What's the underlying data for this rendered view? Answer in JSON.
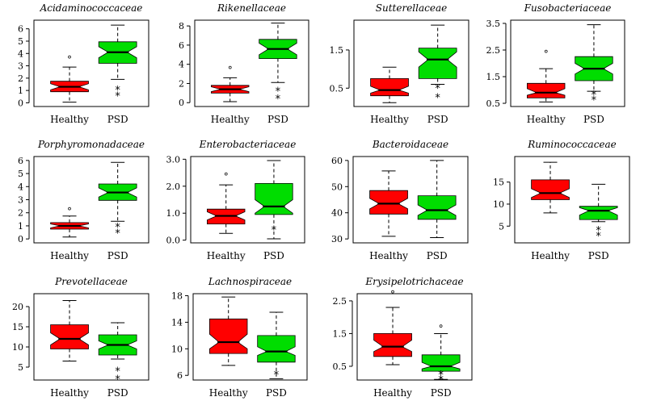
{
  "figure": {
    "colors": {
      "healthy": "#ff0000",
      "psd": "#00dd00",
      "axis": "#000000"
    },
    "whisker_style": "dashed",
    "outlier_marks": [
      "°",
      "*"
    ],
    "groups": [
      "Healthy",
      "PSD"
    ]
  },
  "chart_data": [
    {
      "type": "boxplot",
      "notched": true,
      "title": "Acidaminococcaceae",
      "categories": [
        "Healthy",
        "PSD"
      ],
      "ylim": [
        -0.3,
        6.7
      ],
      "yticks": [
        0,
        1,
        2,
        3,
        4,
        5,
        6
      ],
      "ytick_labels": [
        "0",
        "1",
        "2",
        "3",
        "4",
        "5",
        "6"
      ],
      "boxes": [
        {
          "name": "Healthy",
          "color": "#ff0000",
          "whislo": 0.05,
          "q1": 0.9,
          "med": 1.3,
          "q3": 1.75,
          "whishi": 2.9,
          "notch": [
            1.05,
            1.55
          ],
          "fliers": [
            {
              "y": 3.5,
              "mark": "°"
            }
          ]
        },
        {
          "name": "PSD",
          "color": "#00dd00",
          "whislo": 1.9,
          "q1": 3.2,
          "med": 4.1,
          "q3": 4.95,
          "whishi": 6.3,
          "notch": [
            3.65,
            4.55
          ],
          "fliers": [
            {
              "y": 0.7,
              "mark": "*"
            },
            {
              "y": 1.2,
              "mark": "*"
            }
          ]
        }
      ]
    },
    {
      "type": "boxplot",
      "notched": true,
      "title": "Rikenellaceae",
      "categories": [
        "Healthy",
        "PSD"
      ],
      "ylim": [
        -0.4,
        8.6
      ],
      "yticks": [
        0,
        2,
        4,
        6,
        8
      ],
      "ytick_labels": [
        "0",
        "2",
        "4",
        "6",
        "8"
      ],
      "boxes": [
        {
          "name": "Healthy",
          "color": "#ff0000",
          "whislo": 0.1,
          "q1": 1.0,
          "med": 1.4,
          "q3": 1.8,
          "whishi": 2.6,
          "notch": [
            1.15,
            1.65
          ],
          "fliers": [
            {
              "y": 3.4,
              "mark": "°"
            }
          ]
        },
        {
          "name": "PSD",
          "color": "#00dd00",
          "whislo": 2.1,
          "q1": 4.6,
          "med": 5.6,
          "q3": 6.6,
          "whishi": 8.3,
          "notch": [
            5.0,
            6.2
          ],
          "fliers": [
            {
              "y": 0.6,
              "mark": "*"
            },
            {
              "y": 1.4,
              "mark": "*"
            }
          ]
        }
      ]
    },
    {
      "type": "boxplot",
      "notched": true,
      "title": "Sutterellaceae",
      "categories": [
        "Healthy",
        "PSD"
      ],
      "ylim": [
        0.02,
        2.28
      ],
      "yticks": [
        0.5,
        1.5
      ],
      "ytick_labels": [
        "0.5",
        "1.5"
      ],
      "boxes": [
        {
          "name": "Healthy",
          "color": "#ff0000",
          "whislo": 0.12,
          "q1": 0.3,
          "med": 0.45,
          "q3": 0.75,
          "whishi": 1.05,
          "notch": [
            0.37,
            0.55
          ],
          "fliers": []
        },
        {
          "name": "PSD",
          "color": "#00dd00",
          "whislo": 0.6,
          "q1": 0.75,
          "med": 1.25,
          "q3": 1.55,
          "whishi": 2.15,
          "notch": [
            1.05,
            1.45
          ],
          "fliers": [
            {
              "y": 0.3,
              "mark": "*"
            },
            {
              "y": 0.55,
              "mark": "*"
            }
          ]
        }
      ]
    },
    {
      "type": "boxplot",
      "notched": true,
      "title": "Fusobacteriaceae",
      "categories": [
        "Healthy",
        "PSD"
      ],
      "ylim": [
        0.38,
        3.62
      ],
      "yticks": [
        0.5,
        1.5,
        2.5,
        3.5
      ],
      "ytick_labels": [
        "0.5",
        "1.5",
        "2.5",
        "3.5"
      ],
      "boxes": [
        {
          "name": "Healthy",
          "color": "#ff0000",
          "whislo": 0.55,
          "q1": 0.7,
          "med": 0.9,
          "q3": 1.25,
          "whishi": 1.8,
          "notch": [
            0.8,
            1.05
          ],
          "fliers": [
            {
              "y": 2.35,
              "mark": "°"
            }
          ]
        },
        {
          "name": "PSD",
          "color": "#00dd00",
          "whislo": 0.95,
          "q1": 1.35,
          "med": 1.8,
          "q3": 2.25,
          "whishi": 3.45,
          "notch": [
            1.6,
            2.0
          ],
          "fliers": [
            {
              "y": 0.7,
              "mark": "*"
            },
            {
              "y": 0.9,
              "mark": "*"
            }
          ]
        }
      ]
    },
    {
      "type": "boxplot",
      "notched": true,
      "title": "Porphyromonadaceae",
      "categories": [
        "Healthy",
        "PSD"
      ],
      "ylim": [
        -0.3,
        6.3
      ],
      "yticks": [
        0,
        1,
        2,
        3,
        4,
        5,
        6
      ],
      "ytick_labels": [
        "0",
        "1",
        "2",
        "3",
        "4",
        "5",
        "6"
      ],
      "boxes": [
        {
          "name": "Healthy",
          "color": "#ff0000",
          "whislo": 0.15,
          "q1": 0.75,
          "med": 1.0,
          "q3": 1.25,
          "whishi": 1.75,
          "notch": [
            0.85,
            1.15
          ],
          "fliers": [
            {
              "y": 2.1,
              "mark": "°"
            }
          ]
        },
        {
          "name": "PSD",
          "color": "#00dd00",
          "whislo": 1.35,
          "q1": 2.95,
          "med": 3.55,
          "q3": 4.2,
          "whishi": 5.85,
          "notch": [
            3.2,
            3.9
          ],
          "fliers": [
            {
              "y": 0.6,
              "mark": "*"
            },
            {
              "y": 1.05,
              "mark": "*"
            }
          ]
        }
      ]
    },
    {
      "type": "boxplot",
      "notched": true,
      "title": "Enterobacteriaceae",
      "categories": [
        "Healthy",
        "PSD"
      ],
      "ylim": [
        -0.1,
        3.1
      ],
      "yticks": [
        0.0,
        1.0,
        2.0,
        3.0
      ],
      "ytick_labels": [
        "0.0",
        "1.0",
        "2.0",
        "3.0"
      ],
      "boxes": [
        {
          "name": "Healthy",
          "color": "#ff0000",
          "whislo": 0.25,
          "q1": 0.6,
          "med": 0.9,
          "q3": 1.15,
          "whishi": 2.05,
          "notch": [
            0.75,
            1.05
          ],
          "fliers": [
            {
              "y": 2.35,
              "mark": "°"
            }
          ]
        },
        {
          "name": "PSD",
          "color": "#00dd00",
          "whislo": 0.05,
          "q1": 0.95,
          "med": 1.25,
          "q3": 2.1,
          "whishi": 2.95,
          "notch": [
            1.0,
            1.5
          ],
          "fliers": [
            {
              "y": 0.45,
              "mark": "*"
            }
          ]
        }
      ]
    },
    {
      "type": "boxplot",
      "notched": true,
      "title": "Bacteroidaceae",
      "categories": [
        "Healthy",
        "PSD"
      ],
      "ylim": [
        28.5,
        61.5
      ],
      "yticks": [
        30,
        40,
        50,
        60
      ],
      "ytick_labels": [
        "30",
        "40",
        "50",
        "60"
      ],
      "boxes": [
        {
          "name": "Healthy",
          "color": "#ff0000",
          "whislo": 31,
          "q1": 39.5,
          "med": 43.5,
          "q3": 48.5,
          "whishi": 56,
          "notch": [
            41.5,
            45.5
          ],
          "fliers": []
        },
        {
          "name": "PSD",
          "color": "#00dd00",
          "whislo": 30.5,
          "q1": 37.5,
          "med": 41,
          "q3": 46.5,
          "whishi": 60,
          "notch": [
            39,
            43
          ],
          "fliers": []
        }
      ]
    },
    {
      "type": "boxplot",
      "notched": true,
      "title": "Ruminococcaceae",
      "categories": [
        "Healthy",
        "PSD"
      ],
      "ylim": [
        1.2,
        20.8
      ],
      "yticks": [
        5,
        10,
        15
      ],
      "ytick_labels": [
        "5",
        "10",
        "15"
      ],
      "boxes": [
        {
          "name": "Healthy",
          "color": "#ff0000",
          "whislo": 8,
          "q1": 11,
          "med": 12.5,
          "q3": 15.5,
          "whishi": 19.5,
          "notch": [
            11.5,
            13.5
          ],
          "fliers": []
        },
        {
          "name": "PSD",
          "color": "#00dd00",
          "whislo": 6,
          "q1": 6.5,
          "med": 8.5,
          "q3": 9.5,
          "whishi": 14.5,
          "notch": [
            7.5,
            9.2
          ],
          "fliers": [
            {
              "y": 3.2,
              "mark": "*"
            },
            {
              "y": 4.5,
              "mark": "*"
            }
          ]
        }
      ]
    },
    {
      "type": "boxplot",
      "notched": true,
      "title": "Prevotellaceae",
      "categories": [
        "Healthy",
        "PSD"
      ],
      "ylim": [
        1.8,
        23.2
      ],
      "yticks": [
        5,
        10,
        15,
        20
      ],
      "ytick_labels": [
        "5",
        "10",
        "15",
        "20"
      ],
      "boxes": [
        {
          "name": "Healthy",
          "color": "#ff0000",
          "whislo": 6.5,
          "q1": 9.5,
          "med": 12,
          "q3": 15.5,
          "whishi": 21.5,
          "notch": [
            10.5,
            13.5
          ],
          "fliers": []
        },
        {
          "name": "PSD",
          "color": "#00dd00",
          "whislo": 7,
          "q1": 8,
          "med": 10.5,
          "q3": 13,
          "whishi": 16,
          "notch": [
            9.5,
            11.5
          ],
          "fliers": [
            {
              "y": 2.5,
              "mark": "*"
            },
            {
              "y": 4.5,
              "mark": "*"
            }
          ]
        }
      ]
    },
    {
      "type": "boxplot",
      "notched": true,
      "title": "Lachnospiraceae",
      "categories": [
        "Healthy",
        "PSD"
      ],
      "ylim": [
        5.3,
        18.3
      ],
      "yticks": [
        6,
        10,
        14,
        18
      ],
      "ytick_labels": [
        "6",
        "10",
        "14",
        "18"
      ],
      "boxes": [
        {
          "name": "Healthy",
          "color": "#ff0000",
          "whislo": 7.5,
          "q1": 9.3,
          "med": 11,
          "q3": 14.5,
          "whishi": 17.8,
          "notch": [
            10,
            12.2
          ],
          "fliers": []
        },
        {
          "name": "PSD",
          "color": "#00dd00",
          "whislo": 5.5,
          "q1": 8,
          "med": 9.6,
          "q3": 12,
          "whishi": 15.5,
          "notch": [
            9,
            10.3
          ],
          "fliers": [
            {
              "y": 6.4,
              "mark": "*"
            }
          ]
        }
      ]
    },
    {
      "type": "boxplot",
      "notched": true,
      "title": "Erysipelotrichaceae",
      "categories": [
        "Healthy",
        "PSD"
      ],
      "ylim": [
        0.08,
        2.72
      ],
      "yticks": [
        0.5,
        1.5,
        2.5
      ],
      "ytick_labels": [
        "0.5",
        "1.5",
        "2.5"
      ],
      "boxes": [
        {
          "name": "Healthy",
          "color": "#ff0000",
          "whislo": 0.55,
          "q1": 0.8,
          "med": 1.1,
          "q3": 1.5,
          "whishi": 2.3,
          "notch": [
            0.95,
            1.3
          ],
          "fliers": [
            {
              "y": 2.7,
              "mark": "°"
            }
          ]
        },
        {
          "name": "PSD",
          "color": "#00dd00",
          "whislo": 0.1,
          "q1": 0.35,
          "med": 0.5,
          "q3": 0.85,
          "whishi": 1.5,
          "notch": [
            0.42,
            0.62
          ],
          "fliers": [
            {
              "y": 0.15,
              "mark": "*"
            },
            {
              "y": 0.3,
              "mark": "*"
            },
            {
              "y": 1.65,
              "mark": "°"
            }
          ]
        }
      ]
    }
  ]
}
